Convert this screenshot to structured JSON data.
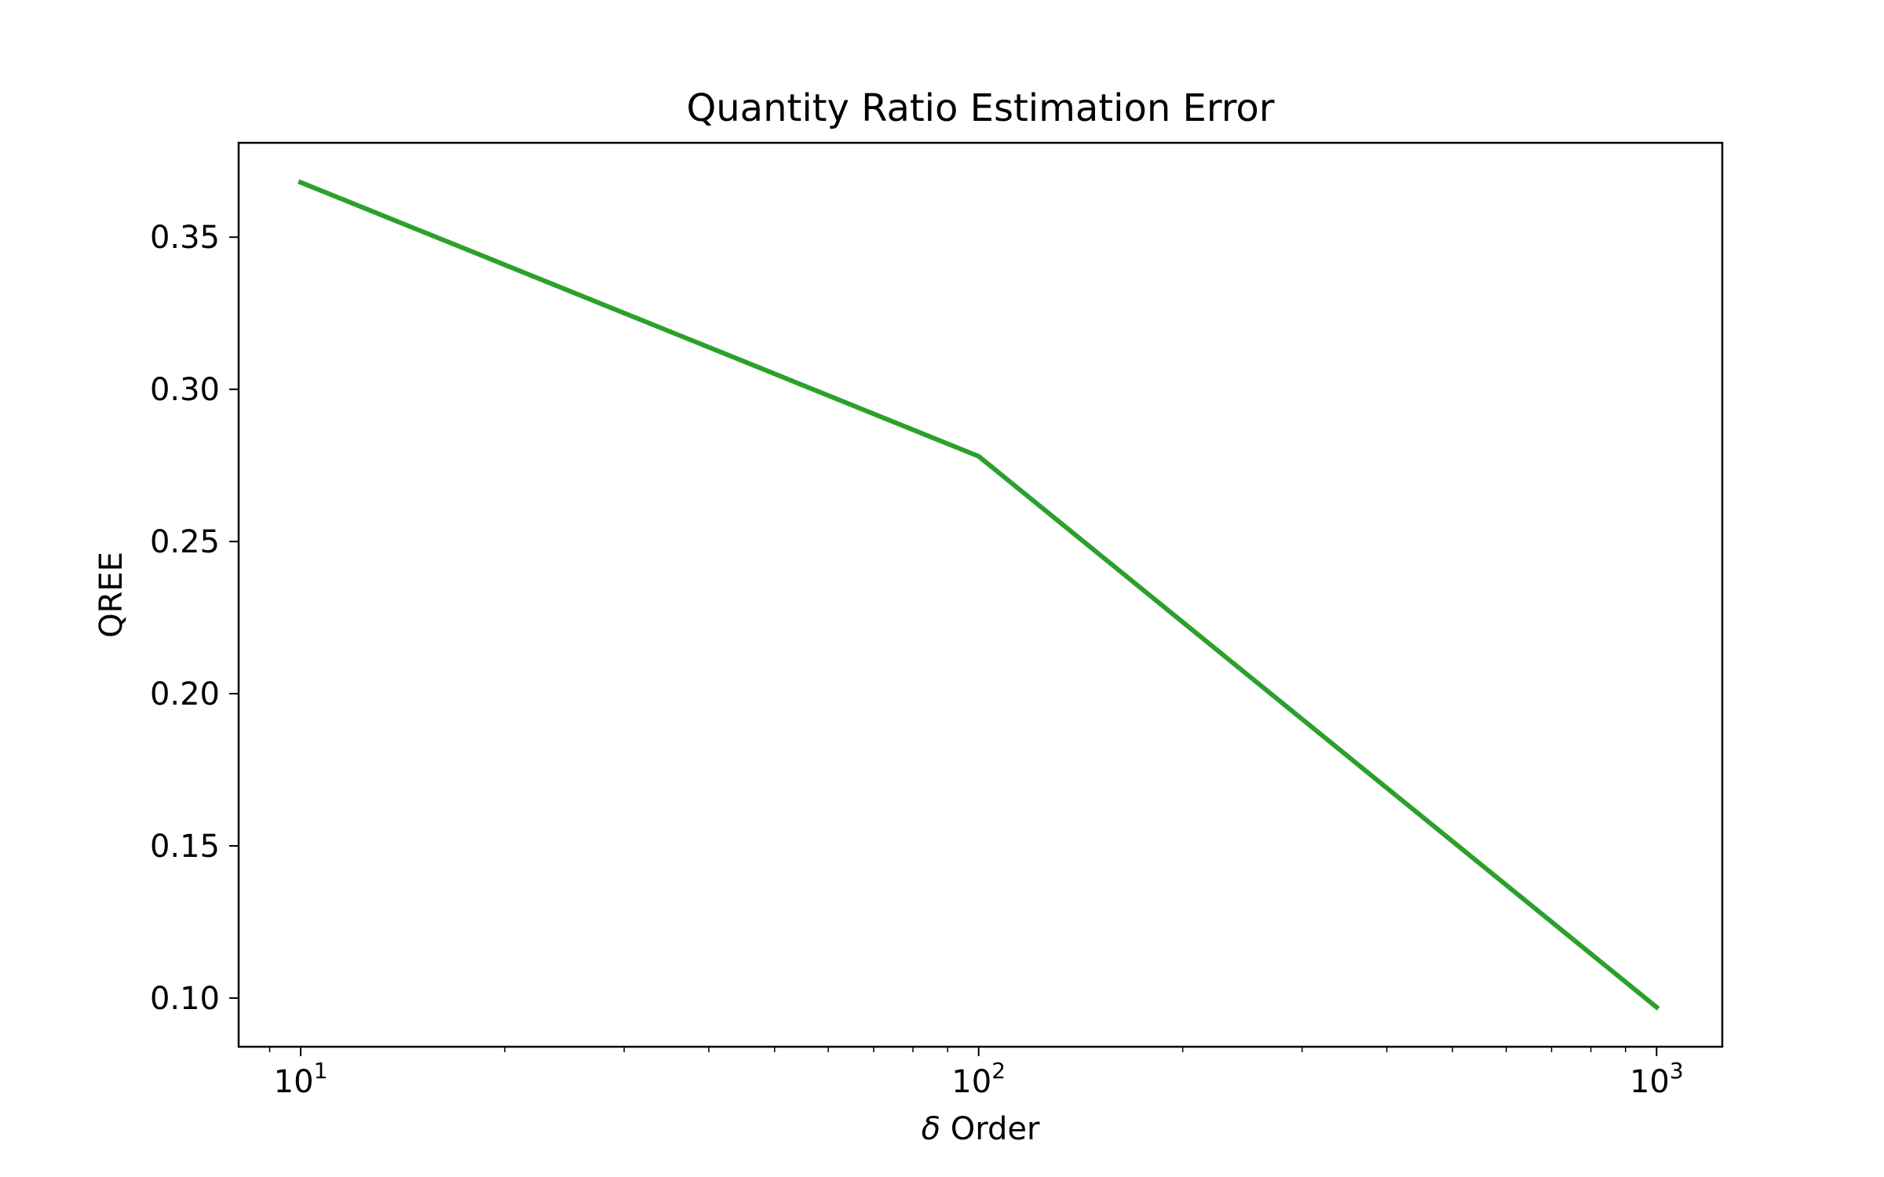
{
  "chart_data": {
    "type": "line",
    "title": "Quantity Ratio Estimation Error",
    "xlabel_symbol": "δ",
    "xlabel_text": " Order",
    "ylabel": "QREE",
    "x_scale": "log",
    "xlim": [
      8.1,
      1250
    ],
    "ylim": [
      0.084,
      0.381
    ],
    "x_ticks": [
      {
        "value": 10,
        "base": "10",
        "exp": "1"
      },
      {
        "value": 100,
        "base": "10",
        "exp": "2"
      },
      {
        "value": 1000,
        "base": "10",
        "exp": "3"
      }
    ],
    "y_ticks": [
      {
        "value": 0.1,
        "label": "0.10"
      },
      {
        "value": 0.15,
        "label": "0.15"
      },
      {
        "value": 0.2,
        "label": "0.20"
      },
      {
        "value": 0.25,
        "label": "0.25"
      },
      {
        "value": 0.3,
        "label": "0.30"
      },
      {
        "value": 0.35,
        "label": "0.35"
      }
    ],
    "series": [
      {
        "name": "QREE",
        "color": "#2ca02c",
        "x": [
          10,
          100,
          1000
        ],
        "y": [
          0.368,
          0.278,
          0.097
        ]
      }
    ],
    "grid": false,
    "legend": "none"
  }
}
